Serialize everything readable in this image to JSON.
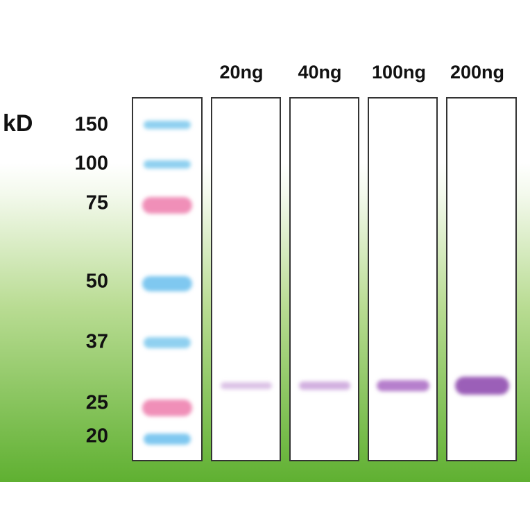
{
  "unit_label": "kD",
  "markers": [
    "150",
    "100",
    "75",
    "50",
    "37",
    "25",
    "20"
  ],
  "lanes": [
    "20ng",
    "40ng",
    "100ng",
    "200ng"
  ]
}
